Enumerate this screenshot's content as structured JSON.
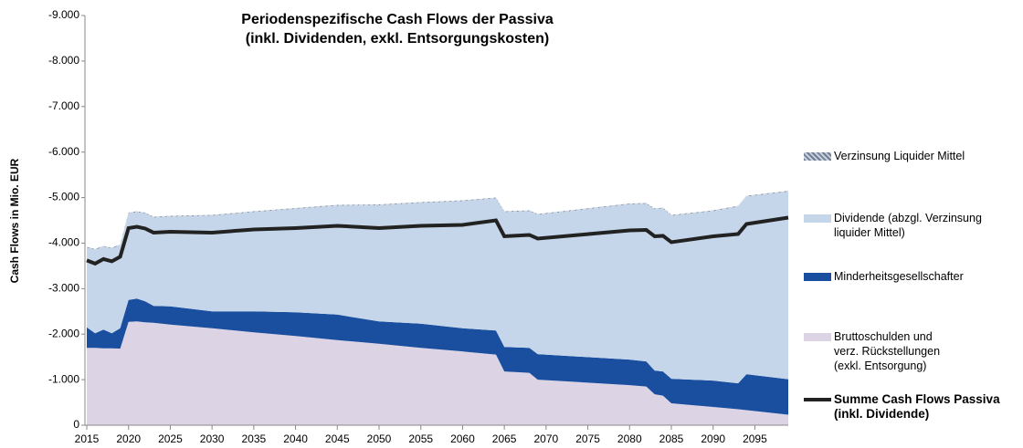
{
  "chart_data": {
    "type": "stacked_area",
    "title": "Periodenspezifische  Cash Flows der Passiva",
    "subtitle": "(inkl. Dividenden, exkl. Entsorgungskosten)",
    "y_label": "Cash Flows in Mio. EUR",
    "x": [
      2015,
      2016,
      2017,
      2018,
      2019,
      2020,
      2021,
      2022,
      2023,
      2025,
      2030,
      2035,
      2040,
      2045,
      2050,
      2055,
      2060,
      2064,
      2065,
      2068,
      2069,
      2080,
      2082,
      2083,
      2084,
      2085,
      2090,
      2093,
      2094,
      2099
    ],
    "xlim": [
      2015,
      2099
    ],
    "xticks": [
      2015,
      2020,
      2025,
      2030,
      2035,
      2040,
      2045,
      2050,
      2055,
      2060,
      2065,
      2070,
      2075,
      2080,
      2085,
      2090,
      2095
    ],
    "ylim": [
      0,
      -9000
    ],
    "yticks": [
      {
        "value": 0,
        "label": "0"
      },
      {
        "value": -1000,
        "label": "-1.000"
      },
      {
        "value": -2000,
        "label": "-2.000"
      },
      {
        "value": -3000,
        "label": "-3.000"
      },
      {
        "value": -4000,
        "label": "-4.000"
      },
      {
        "value": -5000,
        "label": "-5.000"
      },
      {
        "value": -6000,
        "label": "-6.000"
      },
      {
        "value": -7000,
        "label": "-7.000"
      },
      {
        "value": -8000,
        "label": "-8.000"
      },
      {
        "value": -9000,
        "label": "-9.000"
      }
    ],
    "series": [
      {
        "name": "Bruttoschulden und verz. Rückstellungen (exkl. Entsorgung)",
        "color": "#dcd3e4",
        "values": [
          -1700,
          -1700,
          -1690,
          -1690,
          -1680,
          -2270,
          -2280,
          -2260,
          -2250,
          -2210,
          -2130,
          -2040,
          -1960,
          -1870,
          -1790,
          -1700,
          -1620,
          -1550,
          -1180,
          -1150,
          -1000,
          -880,
          -850,
          -680,
          -650,
          -480,
          -400,
          -350,
          -330,
          -230
        ]
      },
      {
        "name": "Minderheitsgesellschafter",
        "color": "#1a4fa0",
        "values": [
          -450,
          -320,
          -410,
          -330,
          -450,
          -480,
          -500,
          -460,
          -370,
          -400,
          -370,
          -460,
          -520,
          -560,
          -490,
          -530,
          -510,
          -530,
          -540,
          -550,
          -560,
          -560,
          -550,
          -520,
          -530,
          -540,
          -580,
          -570,
          -790,
          -780
        ]
      },
      {
        "name": "Dividende (abzgl. Verzinsung liquider Mittel)",
        "color": "#c5d5ea",
        "values": [
          -1750,
          -1830,
          -1820,
          -1860,
          -1820,
          -1900,
          -1900,
          -1930,
          -1940,
          -1970,
          -2100,
          -2180,
          -2270,
          -2390,
          -2550,
          -2650,
          -2790,
          -2900,
          -2960,
          -3000,
          -3060,
          -3410,
          -3460,
          -3540,
          -3580,
          -3580,
          -3720,
          -3880,
          -3900,
          -4120
        ]
      },
      {
        "name": "Verzinsung Liquider Mittel",
        "color": "#9aa9bd",
        "values": [
          -20,
          -20,
          -20,
          -20,
          -20,
          -20,
          -20,
          -20,
          -20,
          -20,
          -20,
          -20,
          -20,
          -20,
          -20,
          -20,
          -20,
          -20,
          -20,
          -20,
          -20,
          -20,
          -20,
          -20,
          -20,
          -20,
          -20,
          -20,
          -20,
          -20
        ]
      }
    ],
    "line": {
      "name": "Summe Cash Flows Passiva (inkl. Dividende)",
      "color": "#222222",
      "values": [
        -3620,
        -3550,
        -3650,
        -3600,
        -3700,
        -4330,
        -4360,
        -4320,
        -4230,
        -4250,
        -4230,
        -4300,
        -4330,
        -4380,
        -4330,
        -4380,
        -4400,
        -4500,
        -4150,
        -4180,
        -4100,
        -4280,
        -4290,
        -4150,
        -4160,
        -4020,
        -4150,
        -4200,
        -4420,
        -4560
      ]
    }
  }
}
